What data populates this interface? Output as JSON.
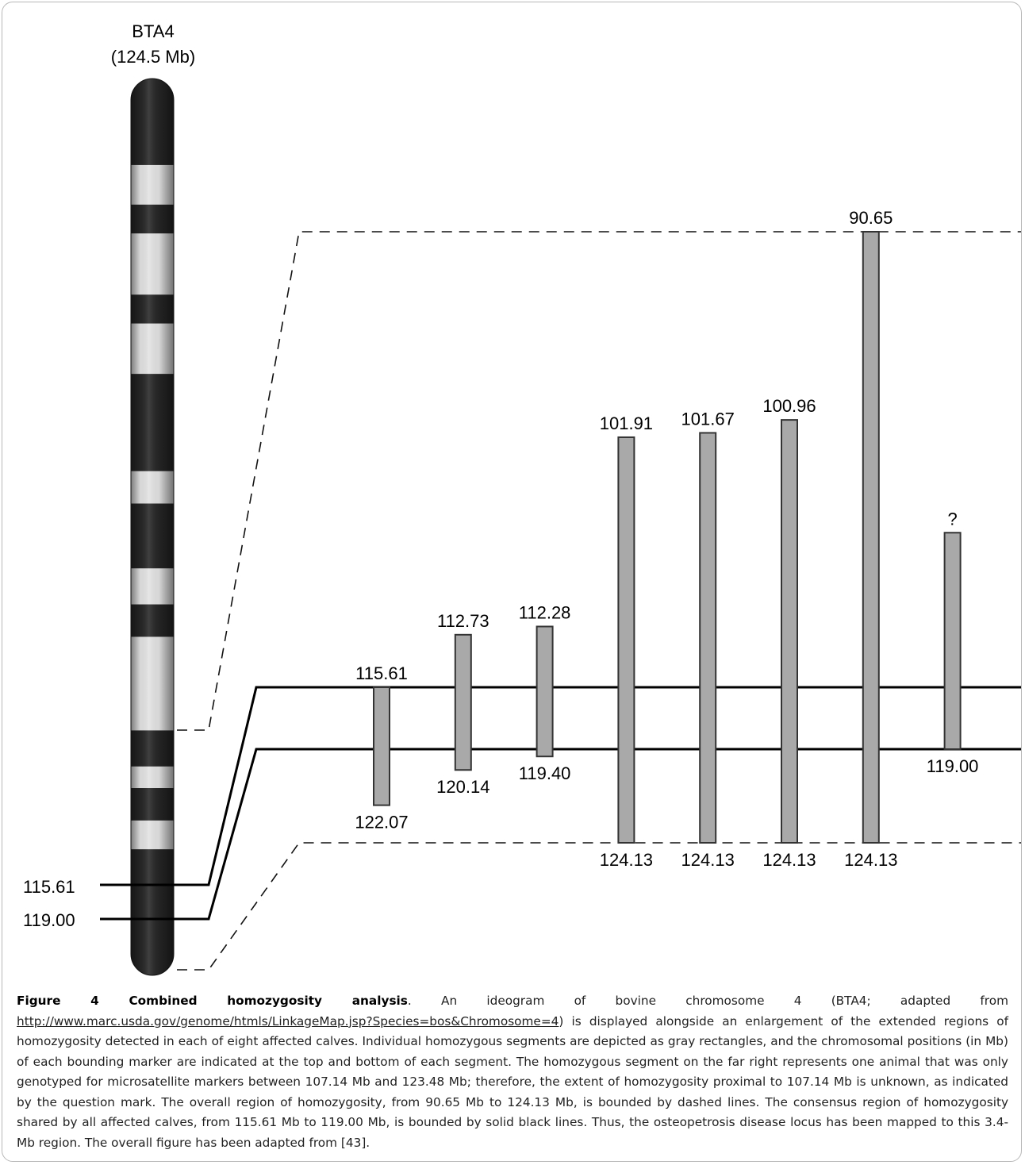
{
  "chromosome": {
    "name": "BTA4",
    "length": "(124.5 Mb)",
    "total_mb": 124.5,
    "band_colors": {
      "dark": "#262626",
      "light": "#e3e3e3"
    },
    "bands_mb": [
      {
        "start": 0,
        "end": 12,
        "shade": "dark"
      },
      {
        "start": 12,
        "end": 17.5,
        "shade": "light"
      },
      {
        "start": 17.5,
        "end": 21.5,
        "shade": "dark"
      },
      {
        "start": 21.5,
        "end": 30,
        "shade": "light"
      },
      {
        "start": 30,
        "end": 34,
        "shade": "dark"
      },
      {
        "start": 34,
        "end": 41,
        "shade": "light"
      },
      {
        "start": 41,
        "end": 54.5,
        "shade": "dark"
      },
      {
        "start": 54.5,
        "end": 59,
        "shade": "light"
      },
      {
        "start": 59,
        "end": 68,
        "shade": "dark"
      },
      {
        "start": 68,
        "end": 73,
        "shade": "light"
      },
      {
        "start": 73,
        "end": 77.5,
        "shade": "dark"
      },
      {
        "start": 77.5,
        "end": 90.5,
        "shade": "light"
      },
      {
        "start": 90.5,
        "end": 95.5,
        "shade": "dark"
      },
      {
        "start": 95.5,
        "end": 98.5,
        "shade": "light"
      },
      {
        "start": 98.5,
        "end": 103,
        "shade": "dark"
      },
      {
        "start": 103,
        "end": 107,
        "shade": "light"
      },
      {
        "start": 107,
        "end": 124.5,
        "shade": "dark"
      }
    ]
  },
  "consensus_labels": {
    "upper": "115.61",
    "lower": "119.00"
  },
  "region_mb": {
    "overall": [
      90.65,
      124.13
    ],
    "consensus": [
      115.61,
      119.0
    ]
  },
  "segments": [
    {
      "top": 115.61,
      "bottom": 122.07,
      "top_label": "115.61",
      "bottom_label": "122.07"
    },
    {
      "top": 112.73,
      "bottom": 120.14,
      "top_label": "112.73",
      "bottom_label": "120.14"
    },
    {
      "top": 112.28,
      "bottom": 119.4,
      "top_label": "112.28",
      "bottom_label": "119.40"
    },
    {
      "top": 101.91,
      "bottom": 124.13,
      "top_label": "101.91",
      "bottom_label": "124.13"
    },
    {
      "top": 101.67,
      "bottom": 124.13,
      "top_label": "101.67",
      "bottom_label": "124.13"
    },
    {
      "top": 100.96,
      "bottom": 124.13,
      "top_label": "100.96",
      "bottom_label": "124.13"
    },
    {
      "top": 90.65,
      "bottom": 124.13,
      "top_label": "90.65",
      "bottom_label": "124.13"
    },
    {
      "top": 107.14,
      "bottom": 119.0,
      "top_label": "?",
      "bottom_label": "119.00"
    }
  ],
  "segment_color": "#a9a9a9",
  "caption": {
    "title": "Figure 4 Combined homozygosity analysis",
    "text1": ". An ideogram of bovine chromosome 4 (BTA4; adapted from ",
    "link": "http://www.marc.usda.gov/genome/htmls/LinkageMap.jsp?Species=bos&Chromosome=4",
    "text2": ") is displayed alongside an enlargement of the extended regions of homozygosity detected in each of eight affected calves. Individual homozygous segments are depicted as gray rectangles, and the chromosomal positions (in Mb) of each bounding marker are indicated at the top and bottom of each segment. The homozygous segment on the far right represents one animal that was only genotyped for microsatellite markers between 107.14 Mb and 123.48 Mb; therefore, the extent of homozygosity proximal to 107.14 Mb is unknown, as indicated by the question mark. The overall region of homozygosity, from 90.65 Mb to 124.13 Mb, is bounded by dashed lines. The consensus region of homozygosity shared by all affected calves, from 115.61 Mb to 119.00 Mb, is bounded by solid black lines. Thus, the osteopetrosis disease locus has been mapped to this 3.4-Mb region. The overall figure has been adapted from [43]."
  }
}
